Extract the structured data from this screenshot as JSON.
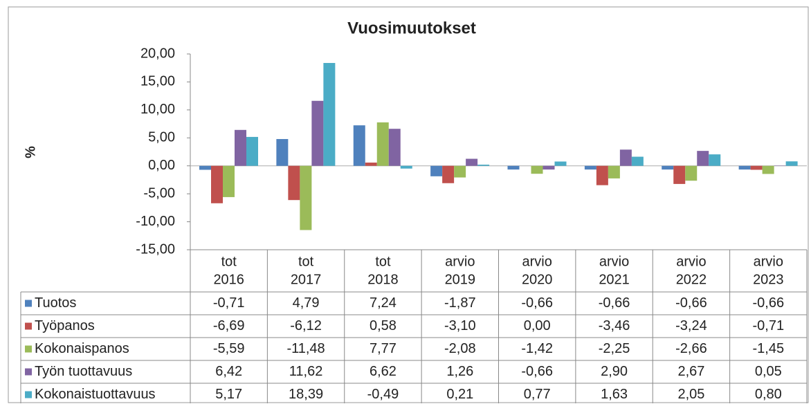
{
  "chart_data": {
    "type": "bar",
    "title": "Vuosimuutokset",
    "y_label": "%",
    "categories": [
      [
        "tot",
        "2016"
      ],
      [
        "tot",
        "2017"
      ],
      [
        "tot",
        "2018"
      ],
      [
        "arvio",
        "2019"
      ],
      [
        "arvio",
        "2020"
      ],
      [
        "arvio",
        "2021"
      ],
      [
        "arvio",
        "2022"
      ],
      [
        "arvio",
        "2023"
      ]
    ],
    "series": [
      {
        "name": "Tuotos",
        "color": "#4f81bd",
        "values": [
          -0.71,
          4.79,
          7.24,
          -1.87,
          -0.66,
          -0.66,
          -0.66,
          -0.66
        ],
        "value_labels": [
          "-0,71",
          "4,79",
          "7,24",
          "-1,87",
          "-0,66",
          "-0,66",
          "-0,66",
          "-0,66"
        ]
      },
      {
        "name": "Työpanos",
        "color": "#c0504d",
        "values": [
          -6.69,
          -6.12,
          0.58,
          -3.1,
          0.0,
          -3.46,
          -3.24,
          -0.71
        ],
        "value_labels": [
          "-6,69",
          "-6,12",
          "0,58",
          "-3,10",
          "0,00",
          "-3,46",
          "-3,24",
          "-0,71"
        ]
      },
      {
        "name": "Kokonaispanos",
        "color": "#9bbb59",
        "values": [
          -5.59,
          -11.48,
          7.77,
          -2.08,
          -1.42,
          -2.25,
          -2.66,
          -1.45
        ],
        "value_labels": [
          "-5,59",
          "-11,48",
          "7,77",
          "-2,08",
          "-1,42",
          "-2,25",
          "-2,66",
          "-1,45"
        ]
      },
      {
        "name": "Työn tuottavuus",
        "color": "#8064a2",
        "values": [
          6.42,
          11.62,
          6.62,
          1.26,
          -0.66,
          2.9,
          2.67,
          0.05
        ],
        "value_labels": [
          "6,42",
          "11,62",
          "6,62",
          "1,26",
          "-0,66",
          "2,90",
          "2,67",
          "0,05"
        ]
      },
      {
        "name": "Kokonaistuottavuus",
        "color": "#4bacc6",
        "values": [
          5.17,
          18.39,
          -0.49,
          0.21,
          0.77,
          1.63,
          2.05,
          0.8
        ],
        "value_labels": [
          "5,17",
          "18,39",
          "-0,49",
          "0,21",
          "0,77",
          "1,63",
          "2,05",
          "0,80"
        ]
      }
    ],
    "ylim": [
      -15,
      20
    ],
    "yticks": [
      {
        "value": -15,
        "label": "-15,00"
      },
      {
        "value": -10,
        "label": "-10,00"
      },
      {
        "value": -5,
        "label": "-5,00"
      },
      {
        "value": 0,
        "label": "0,00"
      },
      {
        "value": 5,
        "label": "5,00"
      },
      {
        "value": 10,
        "label": "10,00"
      },
      {
        "value": 15,
        "label": "15,00"
      },
      {
        "value": 20,
        "label": "20,00"
      }
    ],
    "grid": false
  }
}
